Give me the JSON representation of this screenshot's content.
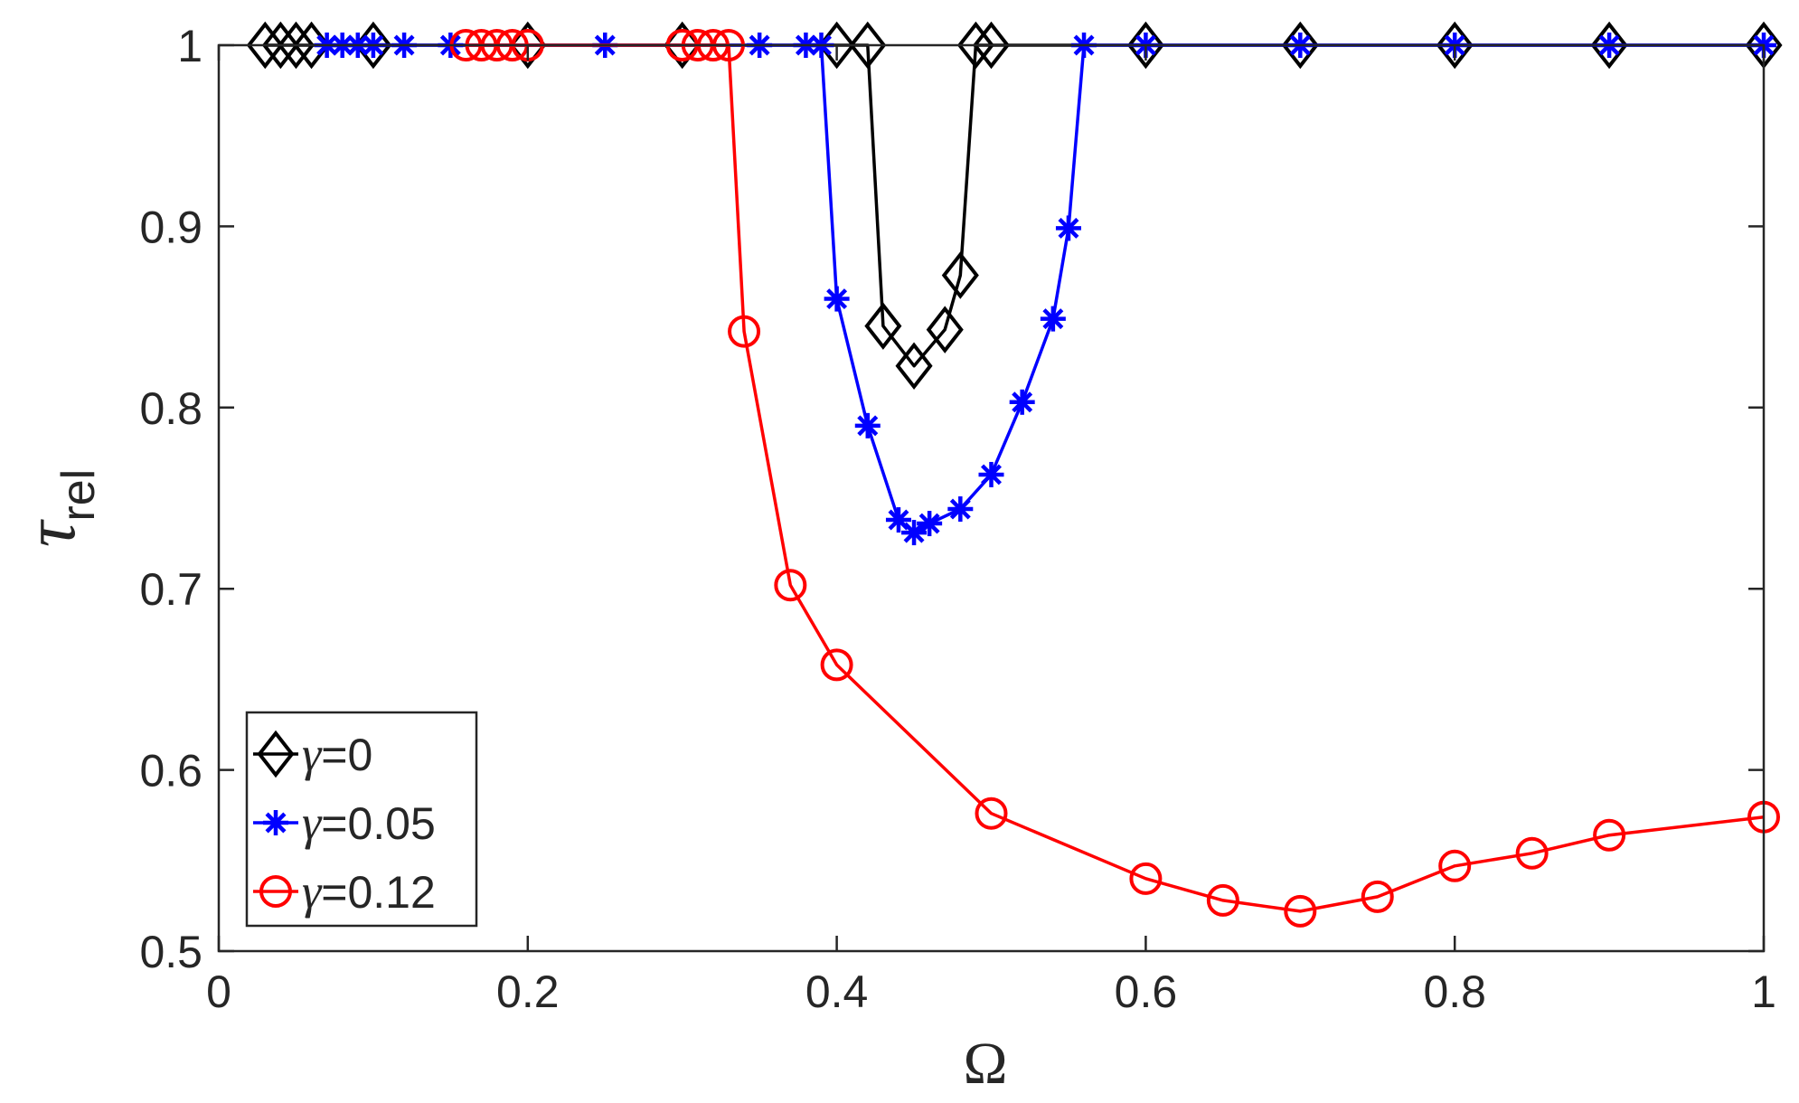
{
  "chart_data": {
    "type": "line",
    "xlabel": "Ω",
    "ylabel_main": "τ",
    "ylabel_sub": "rel",
    "xlim": [
      0,
      1
    ],
    "ylim": [
      0.5,
      1
    ],
    "xticks": [
      0,
      0.2,
      0.4,
      0.6,
      0.8,
      1
    ],
    "xtick_labels": [
      "0",
      "0.2",
      "0.4",
      "0.6",
      "0.8",
      "1"
    ],
    "yticks": [
      0.5,
      0.6,
      0.7,
      0.8,
      0.9,
      1
    ],
    "ytick_labels": [
      "0.5",
      "0.6",
      "0.7",
      "0.8",
      "0.9",
      "1"
    ],
    "grid": false,
    "legend_position": "bottom-left",
    "series": [
      {
        "symbol": "γ",
        "label_value": "=0",
        "color": "#000000",
        "marker": "diamond",
        "x": [
          0.03,
          0.04,
          0.05,
          0.06,
          0.1,
          0.2,
          0.3,
          0.4,
          0.42,
          0.43,
          0.45,
          0.47,
          0.48,
          0.49,
          0.5,
          0.6,
          0.7,
          0.8,
          0.9,
          1.0
        ],
        "y": [
          1,
          1,
          1,
          1,
          1,
          1,
          1,
          1,
          1,
          0.845,
          0.823,
          0.843,
          0.873,
          1,
          1,
          1,
          1,
          1,
          1,
          1
        ]
      },
      {
        "symbol": "γ",
        "label_value": "=0.05",
        "color": "#0000ff",
        "marker": "star",
        "x": [
          0.07,
          0.08,
          0.09,
          0.1,
          0.12,
          0.15,
          0.25,
          0.35,
          0.38,
          0.39,
          0.4,
          0.42,
          0.44,
          0.45,
          0.46,
          0.48,
          0.5,
          0.52,
          0.54,
          0.55,
          0.56,
          0.6,
          0.7,
          0.8,
          0.9,
          1.0
        ],
        "y": [
          1,
          1,
          1,
          1,
          1,
          1,
          1,
          1,
          1,
          1,
          0.86,
          0.79,
          0.738,
          0.731,
          0.736,
          0.744,
          0.763,
          0.803,
          0.849,
          0.899,
          1,
          1,
          1,
          1,
          1,
          1
        ]
      },
      {
        "symbol": "γ",
        "label_value": "=0.12",
        "color": "#ff0000",
        "marker": "circle",
        "x": [
          0.16,
          0.17,
          0.18,
          0.19,
          0.2,
          0.3,
          0.31,
          0.32,
          0.33,
          0.34,
          0.37,
          0.4,
          0.5,
          0.6,
          0.65,
          0.7,
          0.75,
          0.8,
          0.85,
          0.9,
          1.0
        ],
        "y": [
          1,
          1,
          1,
          1,
          1,
          1,
          1,
          1,
          1,
          0.842,
          0.702,
          0.658,
          0.576,
          0.54,
          0.528,
          0.522,
          0.53,
          0.547,
          0.554,
          0.564,
          0.574
        ]
      }
    ]
  }
}
